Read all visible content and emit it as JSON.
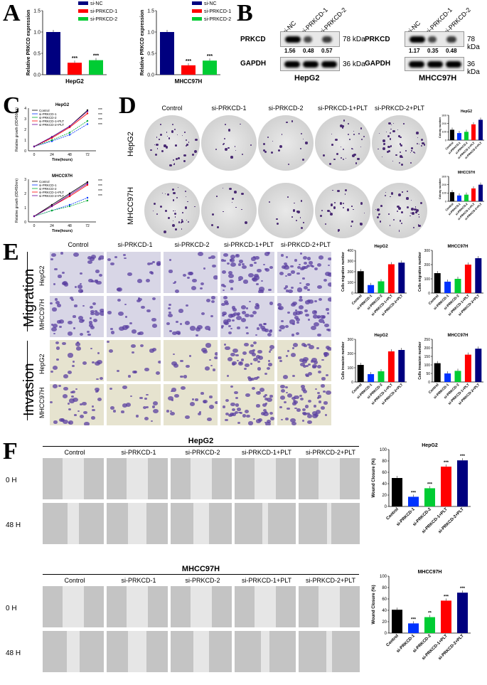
{
  "panels": {
    "A": "A",
    "B": "B",
    "C": "C",
    "D": "D",
    "E": "E",
    "F": "F"
  },
  "A": {
    "legend": [
      {
        "name": "si-NC",
        "color": "#00007f"
      },
      {
        "name": "si-PRKCD-1",
        "color": "#ff0000"
      },
      {
        "name": "si-PRKCD-2",
        "color": "#00cc33"
      }
    ],
    "charts": [
      {
        "xlabel": "HepG2",
        "ylabel": "Relative PRKCD expression",
        "yticks": [
          "0.0",
          "0.5",
          "1.0",
          "1.5"
        ],
        "values": [
          1.0,
          0.28,
          0.34
        ],
        "stars": [
          "",
          "***",
          "***"
        ]
      },
      {
        "xlabel": "MHCC97H",
        "ylabel": "Relative PRKCD expression",
        "yticks": [
          "0.0",
          "0.5",
          "1.0",
          "1.5"
        ],
        "values": [
          1.0,
          0.22,
          0.33
        ],
        "stars": [
          "",
          "***",
          "***"
        ]
      }
    ]
  },
  "B": {
    "lanes": [
      "si-NC",
      "si-PRKCD-1",
      "si-PRKCD-2"
    ],
    "blots": [
      {
        "cell": "HepG2",
        "target": "PRKCD",
        "target_kda": "78 kDa",
        "ratios": [
          "1.56",
          "0.48",
          "0.57"
        ],
        "control": "GAPDH",
        "control_kda": "36 kDa"
      },
      {
        "cell": "MHCC97H",
        "target": "PRKCD",
        "target_kda": "78 kDa",
        "ratios": [
          "1.17",
          "0.35",
          "0.48"
        ],
        "control": "GAPDH",
        "control_kda": "36 kDa"
      }
    ]
  },
  "C": {
    "charts": [
      {
        "title": "HepG2",
        "xlabel": "Time(hours)",
        "ylabel": "Relative growth (OD450nm)",
        "x": [
          0,
          24,
          48,
          72
        ],
        "yticks": [
          "0",
          "1",
          "2",
          "3",
          "4"
        ],
        "series": [
          {
            "name": "Control",
            "color": "#000000",
            "values": [
              0.4,
              1.3,
              2.3,
              3.8
            ]
          },
          {
            "name": "si-PRKCD-1",
            "color": "#0033ff",
            "values": [
              0.4,
              0.9,
              1.5,
              2.5
            ]
          },
          {
            "name": "si-PRKCD-2",
            "color": "#00aa33",
            "values": [
              0.4,
              1.0,
              1.7,
              2.8
            ]
          },
          {
            "name": "si-PRKCD-1+PLT",
            "color": "#ff0000",
            "values": [
              0.4,
              1.2,
              2.2,
              3.5
            ]
          },
          {
            "name": "si-PRKCD-2+PLT",
            "color": "#660099",
            "values": [
              0.4,
              1.3,
              2.3,
              3.7
            ]
          }
        ],
        "stars": [
          "***",
          "***",
          "***",
          "***"
        ]
      },
      {
        "title": "MHCC97H",
        "xlabel": "Time(hours)",
        "ylabel": "Relative growth (OD450nm)",
        "x": [
          0,
          24,
          48,
          72
        ],
        "yticks": [
          "0",
          "1",
          "2",
          "3"
        ],
        "series": [
          {
            "name": "Control",
            "color": "#000000",
            "values": [
              0.4,
              1.2,
              2.0,
              2.8
            ]
          },
          {
            "name": "si-PRKCD-1",
            "color": "#0033ff",
            "values": [
              0.4,
              0.8,
              1.2,
              1.7
            ]
          },
          {
            "name": "si-PRKCD-2",
            "color": "#00aa33",
            "values": [
              0.4,
              0.8,
              1.1,
              1.5
            ]
          },
          {
            "name": "si-PRKCD-1+PLT",
            "color": "#ff0000",
            "values": [
              0.4,
              1.1,
              1.8,
              2.6
            ]
          },
          {
            "name": "si-PRKCD-2+PLT",
            "color": "#660099",
            "values": [
              0.4,
              1.1,
              1.9,
              2.7
            ]
          }
        ],
        "stars": [
          "***",
          "***",
          "***",
          "***"
        ]
      }
    ]
  },
  "D": {
    "columns": [
      "Control",
      "si-PRKCD-1",
      "si-PRKCD-2",
      "si-PRKCD-1+PLT",
      "si-PRKCD-2+PLT"
    ],
    "rows": [
      "HepG2",
      "MHCC97H"
    ],
    "colony_density": [
      [
        0.55,
        0.2,
        0.25,
        0.45,
        0.7
      ],
      [
        0.5,
        0.2,
        0.2,
        0.4,
        0.6
      ]
    ],
    "charts": [
      {
        "title": "HepG2",
        "ylabel": "Colony number",
        "categories": [
          "Control",
          "si-PRKCD-1",
          "si-PRKCD-2",
          "si-PRKCD-1+PLT",
          "si-PRKCD-2+PLT"
        ],
        "values": [
          125,
          85,
          100,
          190,
          245
        ],
        "colors": [
          "#000000",
          "#0033ff",
          "#00cc33",
          "#ff0000",
          "#00007f"
        ],
        "ymax": 300,
        "yticks": [
          "0",
          "100",
          "200",
          "300"
        ]
      },
      {
        "title": "MHCC97H",
        "ylabel": "Colony number",
        "categories": [
          "Control",
          "si-PRKCD-1",
          "si-PRKCD-2",
          "si-PRKCD-1+PLT",
          "si-PRKCD-2+PLT"
        ],
        "values": [
          110,
          70,
          80,
          155,
          200
        ],
        "colors": [
          "#000000",
          "#0033ff",
          "#00cc33",
          "#ff0000",
          "#00007f"
        ],
        "ymax": 300,
        "yticks": [
          "0",
          "100",
          "200",
          "300"
        ]
      }
    ]
  },
  "E": {
    "columns": [
      "Control",
      "si-PRKCD-1",
      "si-PRKCD-2",
      "si-PRKCD-1+PLT",
      "si-PRKCD-2+PLT"
    ],
    "sections": [
      "Migration",
      "Invasion"
    ],
    "rows": [
      "HepG2",
      "MHCC97H",
      "HepG2",
      "MHCC97H"
    ],
    "cell_density": [
      [
        0.55,
        0.3,
        0.35,
        0.85,
        0.85
      ],
      [
        0.7,
        0.4,
        0.45,
        0.9,
        0.9
      ],
      [
        0.4,
        0.25,
        0.3,
        0.75,
        0.7
      ],
      [
        0.6,
        0.35,
        0.4,
        0.85,
        0.9
      ]
    ],
    "charts": [
      {
        "title": "HepG2",
        "ylabel": "Cells migration number",
        "categories": [
          "Control",
          "si-PRKCD-1",
          "si-PRKCD-2",
          "si-PRKCD-1+PLT",
          "si-PRKCD-2+PLT"
        ],
        "values": [
          205,
          75,
          110,
          270,
          285
        ],
        "ymax": 400,
        "yticks": [
          "0",
          "100",
          "200",
          "300",
          "400"
        ]
      },
      {
        "title": "MHCC97H",
        "ylabel": "Cells migration number",
        "categories": [
          "Control",
          "si-PRKCD-1",
          "si-PRKCD-2",
          "si-PRKCD-1+PLT",
          "si-PRKCD-2+PLT"
        ],
        "values": [
          140,
          80,
          100,
          200,
          245
        ],
        "ymax": 300,
        "yticks": [
          "0",
          "100",
          "200",
          "300"
        ]
      },
      {
        "title": "HepG2",
        "ylabel": "Cells invasion number",
        "categories": [
          "Control",
          "si-PRKCD-1",
          "si-PRKCD-2",
          "si-PRKCD-1+PLT",
          "si-PRKCD-2+PLT"
        ],
        "values": [
          120,
          55,
          75,
          215,
          225
        ],
        "ymax": 300,
        "yticks": [
          "0",
          "100",
          "200",
          "300"
        ]
      },
      {
        "title": "MHCC97H",
        "ylabel": "Cells invasion number",
        "categories": [
          "Control",
          "si-PRKCD-1",
          "si-PRKCD-2",
          "si-PRKCD-1+PLT",
          "si-PRKCD-2+PLT"
        ],
        "values": [
          110,
          50,
          65,
          160,
          195
        ],
        "ymax": 250,
        "yticks": [
          "0",
          "50",
          "100",
          "150",
          "200",
          "250"
        ]
      }
    ],
    "colors": [
      "#000000",
      "#0033ff",
      "#00cc33",
      "#ff0000",
      "#00007f"
    ]
  },
  "F": {
    "columns": [
      "Control",
      "si-PRKCD-1",
      "si-PRKCD-2",
      "si-PRKCD-1+PLT",
      "si-PRKCD-2+PLT"
    ],
    "times": [
      "0 H",
      "48 H"
    ],
    "blocks": [
      {
        "cell": "HepG2",
        "gap_0h": [
          0.35,
          0.35,
          0.35,
          0.35,
          0.35
        ],
        "gap_48h": [
          0.18,
          0.3,
          0.25,
          0.1,
          0.07
        ]
      },
      {
        "cell": "MHCC97H",
        "gap_0h": [
          0.35,
          0.35,
          0.35,
          0.35,
          0.35
        ],
        "gap_48h": [
          0.2,
          0.3,
          0.26,
          0.15,
          0.1
        ]
      }
    ],
    "charts": [
      {
        "title": "HepG2",
        "ylabel": "Wound Closure (%)",
        "categories": [
          "Control",
          "si-PRKCD-1",
          "si-PRKCD-2",
          "si-PRKCD-1+PLT",
          "si-PRKCD-2+PLT"
        ],
        "values": [
          50,
          17,
          32,
          70,
          81
        ],
        "stars": [
          "",
          "***",
          "***",
          "***",
          "***"
        ],
        "ymax": 100,
        "yticks": [
          "0",
          "20",
          "40",
          "60",
          "80",
          "100"
        ]
      },
      {
        "title": "MHCC97H",
        "ylabel": "Wound Closure (%)",
        "categories": [
          "Control",
          "si-PRKCD-1",
          "si-PRKCD-2",
          "si-PRKCD-1+PLT",
          "si-PRKCD-2+PLT"
        ],
        "values": [
          41,
          17,
          28,
          57,
          71
        ],
        "stars": [
          "",
          "***",
          "**",
          "***",
          "***"
        ],
        "ymax": 100,
        "yticks": [
          "0",
          "20",
          "40",
          "60",
          "80",
          "100"
        ]
      }
    ],
    "colors": [
      "#000000",
      "#0033ff",
      "#00cc33",
      "#ff0000",
      "#00007f"
    ]
  }
}
